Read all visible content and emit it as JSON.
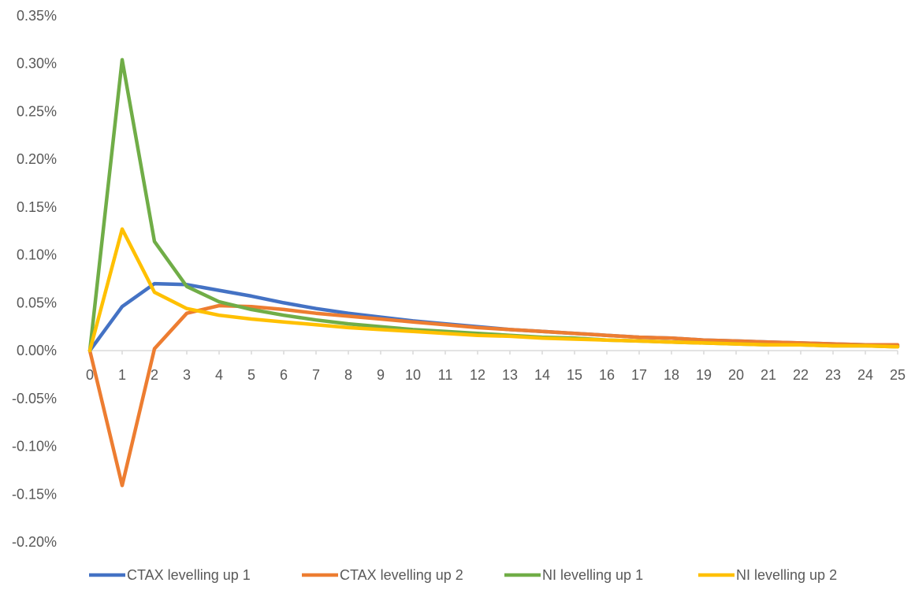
{
  "chart_data": {
    "type": "line",
    "title": "",
    "xlabel": "",
    "ylabel": "",
    "x": [
      0,
      1,
      2,
      3,
      4,
      5,
      6,
      7,
      8,
      9,
      10,
      11,
      12,
      13,
      14,
      15,
      16,
      17,
      18,
      19,
      20,
      21,
      22,
      23,
      24,
      25
    ],
    "ylim": [
      -0.002,
      0.0035
    ],
    "y_ticks": [
      0.0035,
      0.003,
      0.0025,
      0.002,
      0.0015,
      0.001,
      0.0005,
      0.0,
      -0.0005,
      -0.001,
      -0.0015,
      -0.002
    ],
    "y_tick_labels": [
      "0.35%",
      "0.30%",
      "0.25%",
      "0.20%",
      "0.15%",
      "0.10%",
      "0.05%",
      "0.00%",
      "-0.05%",
      "-0.10%",
      "-0.15%",
      "-0.20%"
    ],
    "x_tick_labels": [
      "0",
      "1",
      "2",
      "3",
      "4",
      "5",
      "6",
      "7",
      "8",
      "9",
      "10",
      "11",
      "12",
      "13",
      "14",
      "15",
      "16",
      "17",
      "18",
      "19",
      "20",
      "21",
      "22",
      "23",
      "24",
      "25"
    ],
    "grid": false,
    "legend_position": "bottom",
    "series": [
      {
        "name": "CTAX levelling up 1",
        "color": "#4472C4",
        "values": [
          0.0,
          0.00046,
          0.0007,
          0.00069,
          0.00063,
          0.00057,
          0.0005,
          0.00044,
          0.00039,
          0.00035,
          0.00031,
          0.00028,
          0.00025,
          0.00022,
          0.0002,
          0.00018,
          0.00016,
          0.00014,
          0.00013,
          0.00011,
          0.0001,
          9e-05,
          8e-05,
          7e-05,
          6e-05,
          5e-05
        ]
      },
      {
        "name": "CTAX levelling up 2",
        "color": "#ED7D31",
        "values": [
          0.0,
          -0.00141,
          2e-05,
          0.00039,
          0.00047,
          0.00046,
          0.00043,
          0.00039,
          0.00036,
          0.00033,
          0.0003,
          0.00027,
          0.00024,
          0.00022,
          0.0002,
          0.00018,
          0.00016,
          0.00014,
          0.00013,
          0.00011,
          0.0001,
          9e-05,
          8e-05,
          7e-05,
          6e-05,
          6e-05
        ]
      },
      {
        "name": "NI levelling up 1",
        "color": "#70AD47",
        "values": [
          0.0,
          0.00304,
          0.00114,
          0.00067,
          0.00051,
          0.00043,
          0.00037,
          0.00032,
          0.00028,
          0.00025,
          0.00022,
          0.0002,
          0.00018,
          0.00016,
          0.00014,
          0.00013,
          0.00011,
          0.0001,
          9e-05,
          8e-05,
          7e-05,
          6e-05,
          6e-05,
          5e-05,
          5e-05,
          4e-05
        ]
      },
      {
        "name": "NI levelling up 2",
        "color": "#FFC000",
        "values": [
          0.0,
          0.00127,
          0.00061,
          0.00044,
          0.00037,
          0.00033,
          0.0003,
          0.00027,
          0.00024,
          0.00022,
          0.0002,
          0.00018,
          0.00016,
          0.00015,
          0.00013,
          0.00012,
          0.00011,
          0.0001,
          9e-05,
          8e-05,
          7e-05,
          6e-05,
          6e-05,
          5e-05,
          5e-05,
          4e-05
        ]
      }
    ]
  }
}
